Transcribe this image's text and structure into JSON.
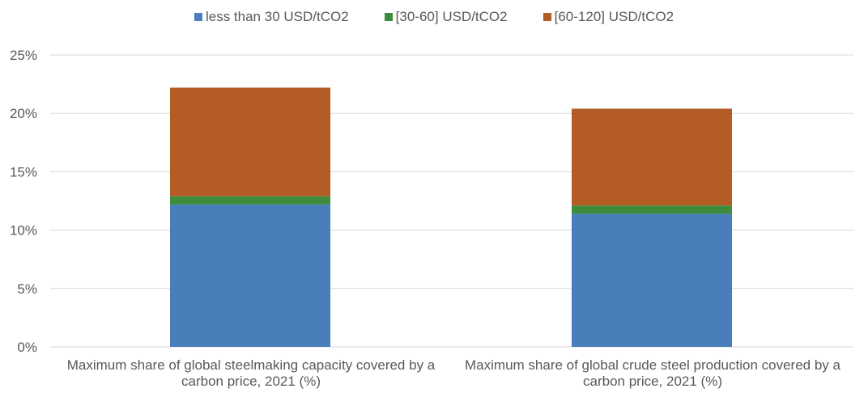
{
  "chart_data": {
    "type": "bar",
    "stacked": true,
    "categories": [
      "Maximum share of global steelmaking capacity covered by a carbon price, 2021 (%)",
      "Maximum share of global crude steel production covered by a carbon price, 2021 (%)"
    ],
    "series": [
      {
        "name": "less than 30 USD/tCO2",
        "color": "#4a7ebb",
        "values": [
          12.2,
          11.4
        ]
      },
      {
        "name": "[30-60] USD/tCO2",
        "color": "#3d8b3d",
        "values": [
          0.7,
          0.7
        ]
      },
      {
        "name": "[60-120] USD/tCO2",
        "color": "#b35c24",
        "values": [
          9.3,
          8.3
        ]
      }
    ],
    "ylim": [
      0,
      25
    ],
    "yticks": [
      "0%",
      "5%",
      "10%",
      "15%",
      "20%",
      "25%"
    ],
    "ytick_values": [
      0,
      5,
      10,
      15,
      20,
      25
    ],
    "grid": true,
    "legend_position": "top",
    "title": "",
    "xlabel": "",
    "ylabel": ""
  }
}
